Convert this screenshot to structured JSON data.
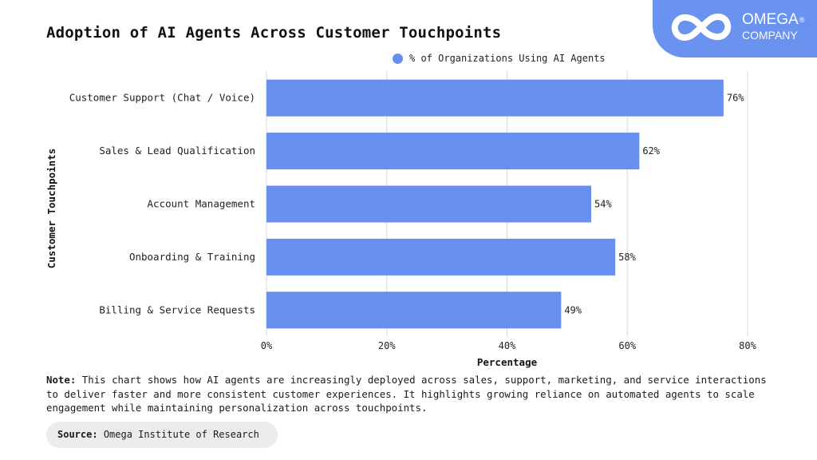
{
  "brand": {
    "name": "OMEGA",
    "registered": "®",
    "sub": "COMPANY",
    "color": "#6a93ef"
  },
  "note": {
    "label": "Note:",
    "text": "This chart shows how AI agents are increasingly deployed across sales, support, marketing, and service interactions to deliver faster and more consistent customer experiences. It highlights growing reliance on automated agents to scale engagement while maintaining personalization across touchpoints."
  },
  "source": {
    "label": "Source:",
    "text": "Omega Institute of Research"
  },
  "chart_data": {
    "type": "bar",
    "orientation": "horizontal",
    "title": "Adoption of AI Agents Across Customer Touchpoints",
    "xlabel": "Percentage",
    "ylabel": "Customer Touchpoints",
    "categories": [
      "Customer Support (Chat / Voice)",
      "Sales & Lead Qualification",
      "Account Management",
      "Onboarding & Training",
      "Billing & Service Requests"
    ],
    "series": [
      {
        "name": "% of Organizations Using AI Agents",
        "values": [
          76,
          62,
          54,
          58,
          49
        ],
        "color": "#6790ee"
      }
    ],
    "value_labels": [
      "76%",
      "62%",
      "54%",
      "58%",
      "49%"
    ],
    "xlim": [
      0,
      80
    ],
    "xticks": [
      0,
      20,
      40,
      60,
      80
    ],
    "xtick_labels": [
      "0%",
      "20%",
      "40%",
      "60%",
      "80%"
    ],
    "grid": "vertical",
    "legend": "top-center"
  }
}
